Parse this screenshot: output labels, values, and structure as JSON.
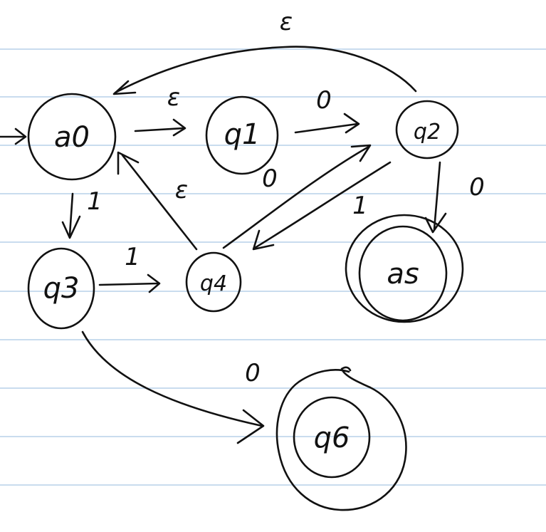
{
  "diagram": {
    "type": "state-diagram",
    "colors": {
      "ink": "#111111",
      "ruled_lines": "#c9dcee",
      "paper": "#ffffff"
    },
    "states": [
      {
        "id": "q0",
        "label": "a0",
        "start": true,
        "accepting": false
      },
      {
        "id": "q1",
        "label": "q1",
        "start": false,
        "accepting": false
      },
      {
        "id": "q2",
        "label": "q2",
        "start": false,
        "accepting": false
      },
      {
        "id": "q3",
        "label": "q3",
        "start": false,
        "accepting": false
      },
      {
        "id": "q4",
        "label": "q4",
        "start": false,
        "accepting": false
      },
      {
        "id": "q5",
        "label": "as",
        "start": false,
        "accepting": true
      },
      {
        "id": "q6",
        "label": "q6",
        "start": false,
        "accepting": true
      }
    ],
    "transitions": [
      {
        "from": "q2",
        "to": "q0",
        "label": "ε"
      },
      {
        "from": "q0",
        "to": "q1",
        "label": "ε"
      },
      {
        "from": "q1",
        "to": "q2",
        "label": "0"
      },
      {
        "from": "q1",
        "to": "q1",
        "label": "0"
      },
      {
        "from": "q4",
        "to": "q0",
        "label": "ε"
      },
      {
        "from": "q4",
        "to": "q2",
        "label": ""
      },
      {
        "from": "q2",
        "to": "q4",
        "label": "1"
      },
      {
        "from": "q2",
        "to": "q5",
        "label": "0"
      },
      {
        "from": "q0",
        "to": "q3",
        "label": "1"
      },
      {
        "from": "q3",
        "to": "q4",
        "label": "1"
      },
      {
        "from": "q3",
        "to": "q6",
        "label": "0"
      }
    ]
  }
}
